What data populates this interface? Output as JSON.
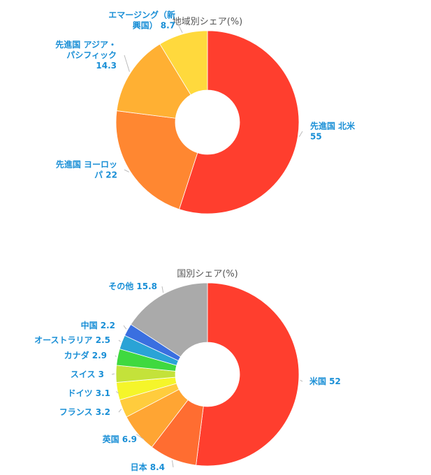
{
  "chart_data": [
    {
      "type": "pie",
      "title": "地域別シェア(%)",
      "slices": [
        {
          "label_lines": [
            "先進国 北米",
            "55"
          ],
          "label": "先進国 北米",
          "value": 55,
          "color": "#ff3e2e"
        },
        {
          "label_lines": [
            "先進国 ヨーロッ",
            "パ  22"
          ],
          "label": "先進国 ヨーロッパ",
          "value": 22,
          "color": "#ff8731"
        },
        {
          "label_lines": [
            "先進国 アジア・",
            "パシフィック",
            "14.3"
          ],
          "label": "先進国 アジア・パシフィック",
          "value": 14.3,
          "color": "#ffb033"
        },
        {
          "label_lines": [
            "エマージング（新",
            "興国）  8.7"
          ],
          "label": "エマージング（新興国）",
          "value": 8.7,
          "color": "#ffd93d"
        }
      ]
    },
    {
      "type": "pie",
      "title": "国別シェア(%)",
      "slices": [
        {
          "label_lines": [
            "米国   52"
          ],
          "label": "米国",
          "value": 52,
          "color": "#ff3e2e"
        },
        {
          "label_lines": [
            "日本   8.4"
          ],
          "label": "日本",
          "value": 8.4,
          "color": "#ff6d31"
        },
        {
          "label_lines": [
            "英国   6.9"
          ],
          "label": "英国",
          "value": 6.9,
          "color": "#ffa533"
        },
        {
          "label_lines": [
            "フランス   3.2"
          ],
          "label": "フランス",
          "value": 3.2,
          "color": "#ffcc3d"
        },
        {
          "label_lines": [
            "ドイツ   3.1"
          ],
          "label": "ドイツ",
          "value": 3.1,
          "color": "#f5f52a"
        },
        {
          "label_lines": [
            "スイス   3"
          ],
          "label": "スイス",
          "value": 3,
          "color": "#c4e23a"
        },
        {
          "label_lines": [
            "カナダ   2.9"
          ],
          "label": "カナダ",
          "value": 2.9,
          "color": "#3fd93f"
        },
        {
          "label_lines": [
            "オーストラリア   2.5"
          ],
          "label": "オーストラリア",
          "value": 2.5,
          "color": "#2aa3d6"
        },
        {
          "label_lines": [
            "中国   2.2"
          ],
          "label": "中国",
          "value": 2.2,
          "color": "#3a6fe0"
        },
        {
          "label_lines": [
            "その他   15.8"
          ],
          "label": "その他",
          "value": 15.8,
          "color": "#aaaaaa"
        }
      ]
    }
  ]
}
